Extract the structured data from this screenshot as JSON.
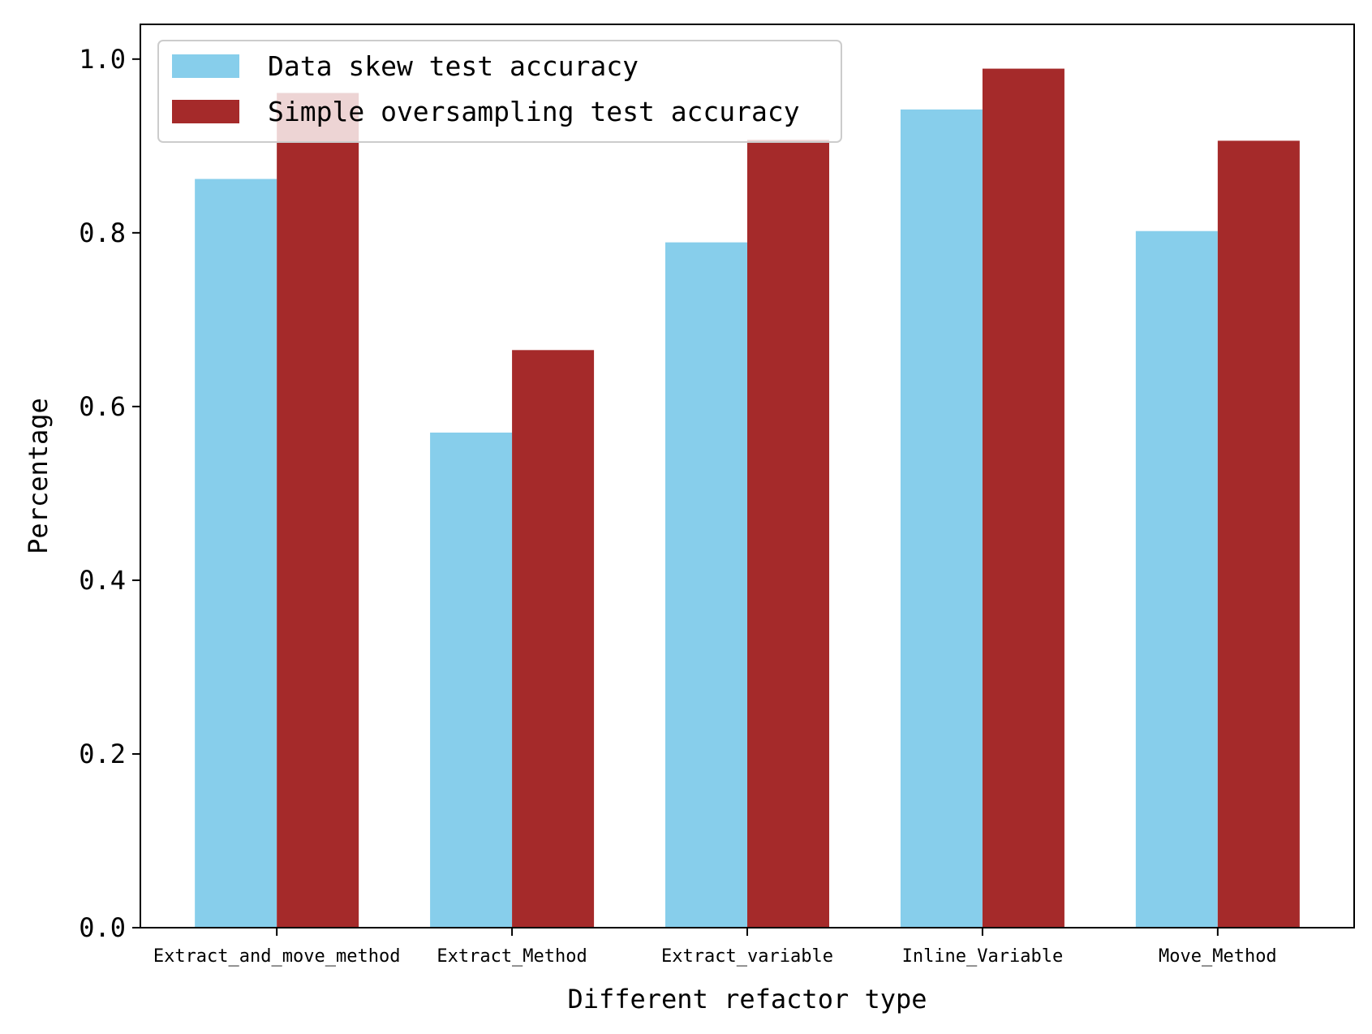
{
  "chart_data": {
    "type": "bar",
    "categories": [
      "Extract_and_move_method",
      "Extract_Method",
      "Extract_variable",
      "Inline_Variable",
      "Move_Method"
    ],
    "series": [
      {
        "name": "Data skew test accuracy",
        "values": [
          0.862,
          0.57,
          0.789,
          0.942,
          0.802
        ],
        "color": "#87ceeb"
      },
      {
        "name": "Simple oversampling test accuracy",
        "values": [
          0.961,
          0.665,
          0.907,
          0.989,
          0.906
        ],
        "color": "#a52a2a"
      }
    ],
    "title": "",
    "xlabel": "Different refactor type",
    "ylabel": "Percentage",
    "ylim": [
      0,
      1.04
    ],
    "yticks": [
      "0.0",
      "0.2",
      "0.4",
      "0.6",
      "0.8",
      "1.0"
    ],
    "grid": false,
    "legend_position": "upper-left"
  }
}
